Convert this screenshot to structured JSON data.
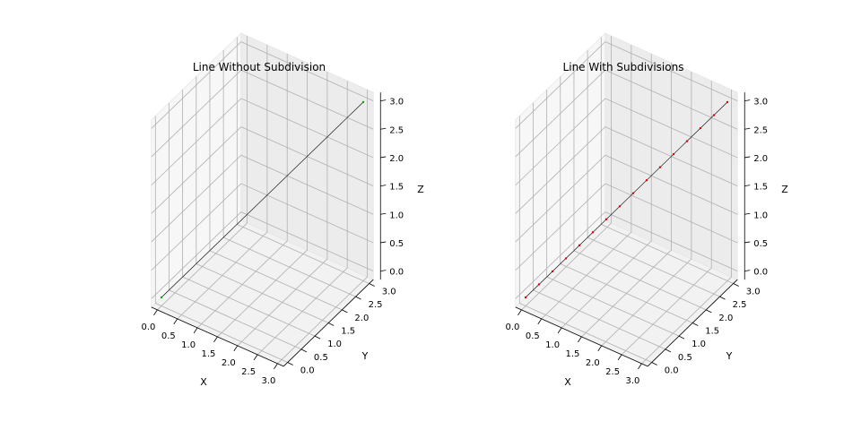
{
  "chart_data": [
    {
      "type": "line3d",
      "title": "Line Without Subdivision",
      "xlabel": "X",
      "ylabel": "Y",
      "zlabel": "Z",
      "xlim": [
        0,
        3
      ],
      "ylim": [
        0,
        3
      ],
      "zlim": [
        0,
        3
      ],
      "grid": true,
      "xticks": [
        "0.0",
        "0.5",
        "1.0",
        "1.5",
        "2.0",
        "2.5",
        "3.0"
      ],
      "yticks": [
        "0.0",
        "0.5",
        "1.0",
        "1.5",
        "2.0",
        "2.5",
        "3.0"
      ],
      "zticks": [
        "0.0",
        "0.5",
        "1.0",
        "1.5",
        "2.0",
        "2.5",
        "3.0"
      ],
      "line": {
        "x": [
          0,
          3
        ],
        "y": [
          0,
          3
        ],
        "z": [
          0,
          3
        ],
        "color": "#000000"
      },
      "points": {
        "x": [
          0,
          3
        ],
        "y": [
          0,
          3
        ],
        "z": [
          0,
          3
        ],
        "color": "#00aa00"
      }
    },
    {
      "type": "line3d",
      "title": "Line With Subdivisions",
      "xlabel": "X",
      "ylabel": "Y",
      "zlabel": "Z",
      "xlim": [
        0,
        3
      ],
      "ylim": [
        0,
        3
      ],
      "zlim": [
        0,
        3
      ],
      "grid": true,
      "xticks": [
        "0.0",
        "0.5",
        "1.0",
        "1.5",
        "2.0",
        "2.5",
        "3.0"
      ],
      "yticks": [
        "0.0",
        "0.5",
        "1.0",
        "1.5",
        "2.0",
        "2.5",
        "3.0"
      ],
      "zticks": [
        "0.0",
        "0.5",
        "1.0",
        "1.5",
        "2.0",
        "2.5",
        "3.0"
      ],
      "line": {
        "x": [
          0,
          3
        ],
        "y": [
          0,
          3
        ],
        "z": [
          0,
          3
        ],
        "color": "#000000"
      },
      "points": {
        "x": [
          0,
          0.2,
          0.4,
          0.6,
          0.8,
          1.0,
          1.2,
          1.4,
          1.6,
          1.8,
          2.0,
          2.2,
          2.4,
          2.6,
          2.8,
          3.0
        ],
        "y": [
          0,
          0.2,
          0.4,
          0.6,
          0.8,
          1.0,
          1.2,
          1.4,
          1.6,
          1.8,
          2.0,
          2.2,
          2.4,
          2.6,
          2.8,
          3.0
        ],
        "z": [
          0,
          0.2,
          0.4,
          0.6,
          0.8,
          1.0,
          1.2,
          1.4,
          1.6,
          1.8,
          2.0,
          2.2,
          2.4,
          2.6,
          2.8,
          3.0
        ],
        "color": "#dd0000"
      }
    }
  ]
}
